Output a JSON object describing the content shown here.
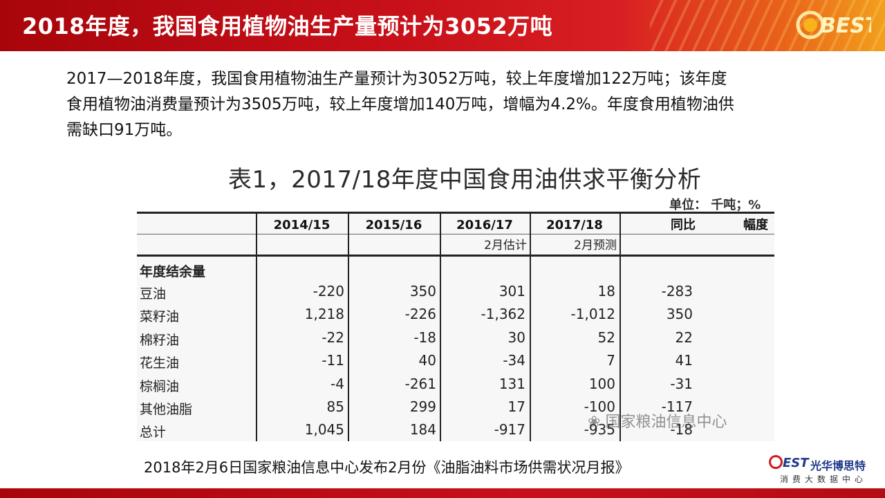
{
  "header": {
    "title": "2018年度，我国食用植物油生产量预计为3052万吨",
    "logo_text": "BEST"
  },
  "paragraph": {
    "line1": "2017—2018年度，我国食用植物油生产量预计为3052万吨，较上年度增加122万吨；该年度",
    "line2": "食用植物油消费量预计为3505万吨，较上年度增加140万吨，增幅为4.2%。年度食用植物油供",
    "line3": "需缺口91万吨。"
  },
  "table": {
    "title": "表1，2017/18年度中国食用油供求平衡分析",
    "unit": "单位：  千吨；%",
    "headers": [
      "2014/15",
      "2015/16",
      "2016/17",
      "2017/18",
      "同比",
      "幅度"
    ],
    "subheaders": [
      "",
      "",
      "2月估计",
      "2月预测",
      ""
    ],
    "section_label": "年度结余量",
    "rows": [
      {
        "label": "豆油",
        "values": [
          "-220",
          "350",
          "301",
          "18",
          "-283"
        ]
      },
      {
        "label": "菜籽油",
        "values": [
          "1,218",
          "-226",
          "-1,362",
          "-1,012",
          "350"
        ]
      },
      {
        "label": "棉籽油",
        "values": [
          "-22",
          "-18",
          "30",
          "52",
          "22"
        ]
      },
      {
        "label": "花生油",
        "values": [
          "-11",
          "40",
          "-34",
          "7",
          "41"
        ]
      },
      {
        "label": "棕榈油",
        "values": [
          "-4",
          "-261",
          "131",
          "100",
          "-31"
        ]
      },
      {
        "label": "其他油脂",
        "values": [
          "85",
          "299",
          "17",
          "-100",
          "-117"
        ]
      },
      {
        "label": "总计",
        "values": [
          "1,045",
          "184",
          "-917",
          "-935",
          "-18"
        ]
      }
    ],
    "watermark": "国家粮油信息中心"
  },
  "footer": {
    "source": "2018年2月6日国家粮油信息中心发布2月份《油脂油料市场供需状况月报》",
    "brand_est": "EST",
    "brand_name": "光华博思特",
    "brand_sub": "消费大数据中心"
  }
}
